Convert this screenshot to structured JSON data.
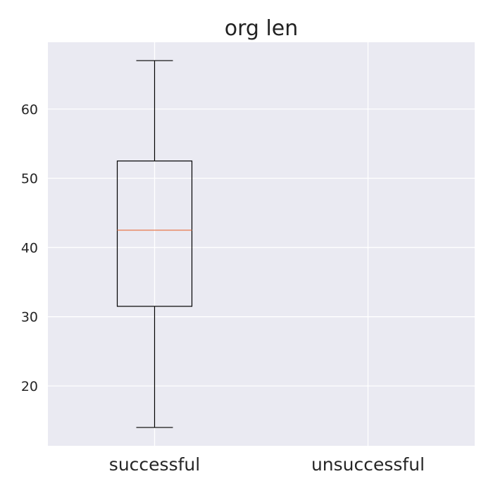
{
  "chart_data": {
    "type": "box",
    "title": "org len",
    "xlabel": "",
    "ylabel": "",
    "categories": [
      "successful",
      "unsuccessful"
    ],
    "boxes": [
      {
        "category": "successful",
        "whisker_low": 14,
        "q1": 31.5,
        "median": 42.5,
        "q3": 52.5,
        "whisker_high": 67
      },
      {
        "category": "unsuccessful",
        "whisker_low": null,
        "q1": null,
        "median": null,
        "q3": null,
        "whisker_high": null
      }
    ],
    "ylim": [
      11.35,
      69.65
    ],
    "yticks": [
      20,
      30,
      40,
      50,
      60
    ],
    "grid": true,
    "colors": {
      "plot_background": "#EAEAF2",
      "grid": "#FFFFFF",
      "box_line": "#000000",
      "median_line": "#E8825A"
    }
  }
}
